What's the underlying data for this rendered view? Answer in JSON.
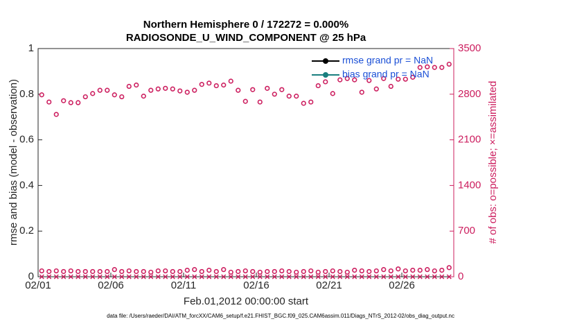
{
  "chart_data": {
    "type": "scatter",
    "title": "Northern Hemisphere 0 / 172272 = 0.000%",
    "subtitle": "RADIOSONDE_U_WIND_COMPONENT @ 25 hPa",
    "xlabel": "Feb.01,2012 00:00:00 start",
    "ylabel": "rmse and bias (model - observation)",
    "y2label": "# of obs: o=possible; ×=assimilated",
    "footnote": "data file: /Users/raeder/DAI/ATM_forcXX/CAM6_setup/f.e21.FHIST_BGC.f09_025.CAM6assim.011/Diags_NTrS_2012-02/obs_diag_output.nc",
    "xlim": [
      1,
      29.57
    ],
    "xticks": [
      {
        "value": 1,
        "label": "02/01"
      },
      {
        "value": 6,
        "label": "02/06"
      },
      {
        "value": 11,
        "label": "02/11"
      },
      {
        "value": 16,
        "label": "02/16"
      },
      {
        "value": 21,
        "label": "02/21"
      },
      {
        "value": 26,
        "label": "02/26"
      }
    ],
    "ylim": [
      0,
      1
    ],
    "yticks": [
      0,
      0.2,
      0.4,
      0.6,
      0.8,
      1
    ],
    "y2lim": [
      0,
      3500
    ],
    "y2ticks": [
      0,
      700,
      1400,
      2100,
      2800,
      3500
    ],
    "y2color": "#cc1d5e",
    "legend": "upper right",
    "x": [
      1.25,
      1.75,
      2.25,
      2.75,
      3.25,
      3.75,
      4.25,
      4.75,
      5.25,
      5.75,
      6.25,
      6.75,
      7.25,
      7.75,
      8.25,
      8.75,
      9.25,
      9.75,
      10.25,
      10.75,
      11.25,
      11.75,
      12.25,
      12.75,
      13.25,
      13.75,
      14.25,
      14.75,
      15.25,
      15.75,
      16.25,
      16.75,
      17.25,
      17.75,
      18.25,
      18.75,
      19.25,
      19.75,
      20.25,
      20.75,
      21.25,
      21.75,
      22.25,
      22.75,
      23.25,
      23.75,
      24.25,
      24.75,
      25.25,
      25.75,
      26.25,
      26.75,
      27.25,
      27.75,
      28.25,
      28.75,
      29.25
    ],
    "series": [
      {
        "name": "rmse grand pr = NaN",
        "color": "#000000",
        "marker": "dot",
        "axis": "y",
        "values": [
          null,
          null,
          null,
          null,
          null,
          null,
          null,
          null,
          null,
          null,
          null,
          null,
          null,
          null,
          null,
          null,
          null,
          null,
          null,
          null,
          null,
          null,
          null,
          null,
          null,
          null,
          null,
          null,
          null,
          null,
          null,
          null,
          null,
          null,
          null,
          null,
          null,
          null,
          null,
          null,
          null,
          null,
          null,
          null,
          null,
          null,
          null,
          null,
          null,
          null,
          null,
          null,
          null,
          null,
          null,
          null,
          null
        ]
      },
      {
        "name": "bias grand pr = NaN",
        "color": "#1a7f7f",
        "marker": "dot",
        "axis": "y",
        "values": [
          null,
          null,
          null,
          null,
          null,
          null,
          null,
          null,
          null,
          null,
          null,
          null,
          null,
          null,
          null,
          null,
          null,
          null,
          null,
          null,
          null,
          null,
          null,
          null,
          null,
          null,
          null,
          null,
          null,
          null,
          null,
          null,
          null,
          null,
          null,
          null,
          null,
          null,
          null,
          null,
          null,
          null,
          null,
          null,
          null,
          null,
          null,
          null,
          null,
          null,
          null,
          null,
          null,
          null,
          null,
          null,
          null
        ]
      },
      {
        "color": "#cc1d5e",
        "marker": "o",
        "axis": "y2",
        "values": [
          2790,
          2680,
          2490,
          2700,
          2670,
          2670,
          2760,
          2810,
          2860,
          2860,
          2790,
          2760,
          2920,
          2940,
          2770,
          2860,
          2880,
          2890,
          2880,
          2850,
          2830,
          2860,
          2950,
          2970,
          2930,
          2940,
          3000,
          2860,
          2690,
          2870,
          2680,
          2890,
          2800,
          2870,
          2770,
          2770,
          2660,
          2680,
          2930,
          2990,
          2810,
          3020,
          3040,
          3020,
          2830,
          3010,
          2880,
          3040,
          2920,
          3030,
          3030,
          3060,
          3210,
          3220,
          3210,
          3210,
          3260
        ]
      },
      {
        "color": "#cc1d5e",
        "marker": "o",
        "axis": "y2",
        "values": [
          90,
          80,
          90,
          80,
          90,
          80,
          80,
          80,
          80,
          80,
          110,
          80,
          90,
          80,
          80,
          70,
          90,
          90,
          80,
          80,
          100,
          110,
          80,
          100,
          80,
          110,
          70,
          80,
          90,
          80,
          70,
          80,
          80,
          90,
          80,
          70,
          80,
          90,
          70,
          80,
          90,
          80,
          70,
          100,
          90,
          80,
          90,
          110,
          90,
          120,
          90,
          100,
          100,
          110,
          90,
          100,
          140
        ]
      },
      {
        "color": "#cc1d5e",
        "marker": "x",
        "axis": "y2",
        "values": [
          0,
          0,
          0,
          0,
          0,
          0,
          0,
          0,
          0,
          0,
          0,
          0,
          0,
          0,
          0,
          0,
          0,
          0,
          0,
          0,
          0,
          0,
          0,
          0,
          0,
          0,
          0,
          0,
          0,
          0,
          0,
          0,
          0,
          0,
          0,
          0,
          0,
          0,
          0,
          0,
          0,
          0,
          0,
          0,
          0,
          0,
          0,
          0,
          0,
          0,
          0,
          0,
          0,
          0,
          0,
          0,
          0
        ]
      }
    ]
  }
}
